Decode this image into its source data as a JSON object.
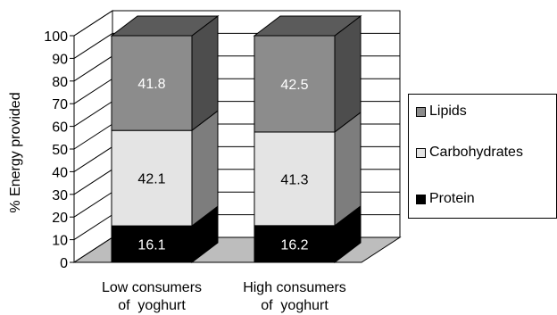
{
  "chart_data": {
    "type": "bar",
    "stacked": true,
    "three_d": true,
    "categories": [
      "Low consumers of  yoghurt",
      "High consumers of  yoghurt"
    ],
    "category_lines": [
      [
        "Low consumers",
        "of  yoghurt"
      ],
      [
        "High consumers",
        "of  yoghurt"
      ]
    ],
    "series": [
      {
        "name": "Protein",
        "values": [
          16.1,
          16.2
        ],
        "color": "#000000",
        "label_color": "#ffffff"
      },
      {
        "name": "Carbohydrates",
        "values": [
          42.1,
          41.3
        ],
        "color": "#e4e4e4",
        "label_color": "#000000"
      },
      {
        "name": "Lipids",
        "values": [
          41.8,
          42.5
        ],
        "color": "#8c8c8c",
        "label_color": "#ffffff"
      }
    ],
    "ylabel": "% Energy provided",
    "ylim": [
      0,
      100
    ],
    "yticks": [
      0,
      10,
      20,
      30,
      40,
      50,
      60,
      70,
      80,
      90,
      100
    ],
    "grid": true,
    "legend_position": "right",
    "legend_order": [
      "Lipids",
      "Carbohydrates",
      "Protein"
    ]
  }
}
